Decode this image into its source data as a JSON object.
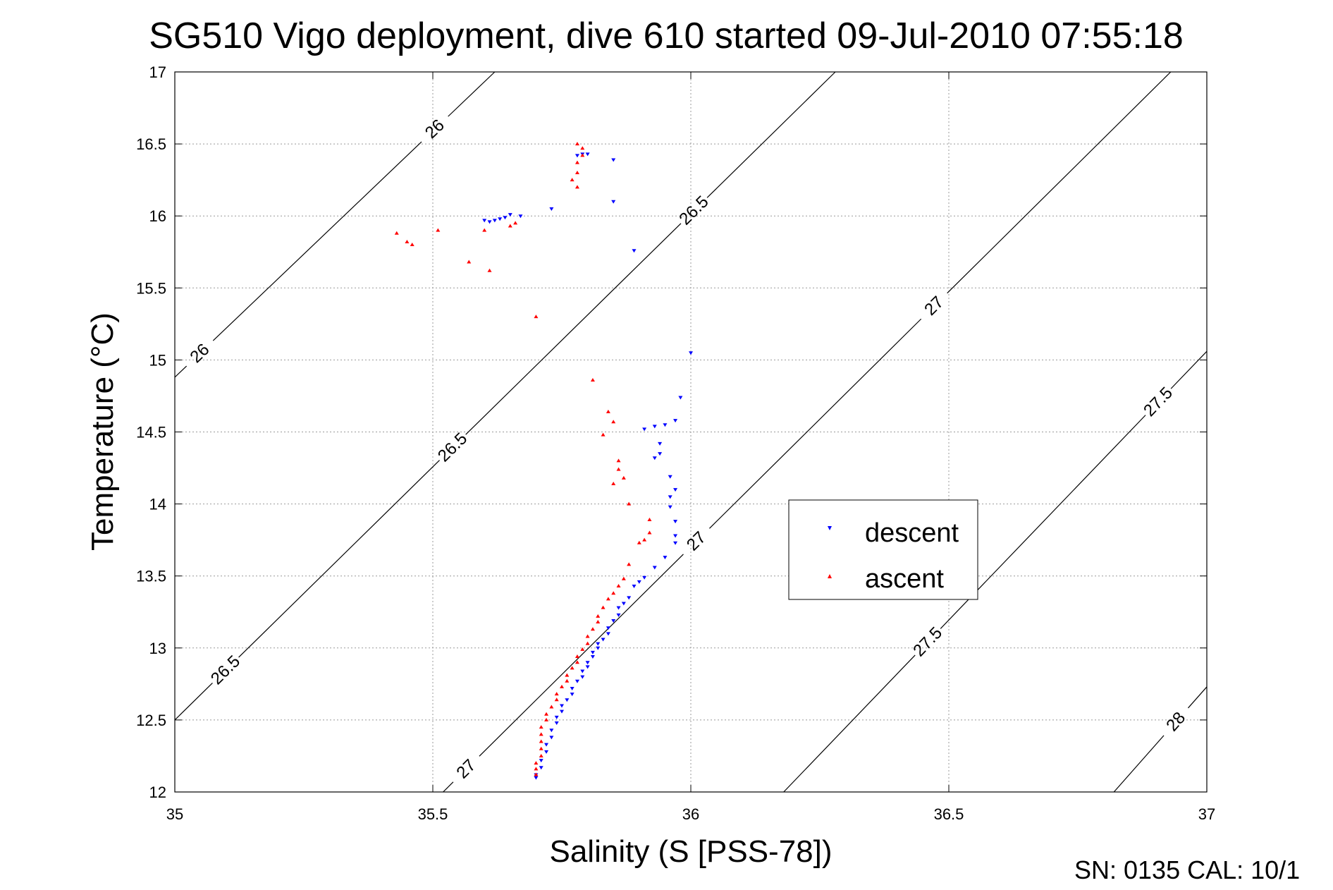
{
  "chart_data": {
    "type": "scatter",
    "title": "SG510 Vigo deployment, dive 610 started 09-Jul-2010 07:55:18",
    "xlabel": "Salinity (S [PSS-78])",
    "ylabel": "Temperature (°C)",
    "xlim": [
      35,
      37
    ],
    "ylim": [
      12,
      17
    ],
    "x_ticks": [
      35,
      35.5,
      36,
      36.5,
      37
    ],
    "x_tick_labels": [
      "35",
      "35.5",
      "36",
      "36.5",
      "37"
    ],
    "y_ticks": [
      12,
      12.5,
      13,
      13.5,
      14,
      14.5,
      15,
      15.5,
      16,
      16.5,
      17
    ],
    "y_tick_labels": [
      "12",
      "12.5",
      "13",
      "13.5",
      "14",
      "14.5",
      "15",
      "15.5",
      "16",
      "16.5",
      "17"
    ],
    "grid": true,
    "legend_position": "center-right",
    "footer": "SN: 0135  CAL: 10/1",
    "colors": {
      "descent": "#0000ff",
      "ascent": "#ff0000",
      "contour": "#000000",
      "grid": "#999999"
    },
    "contours": [
      {
        "value": 26,
        "points": [
          [
            35.0,
            14.88
          ],
          [
            35.62,
            17.0
          ]
        ],
        "labels": [
          {
            "text": "26",
            "x": 35.05,
            "y": 15.04
          },
          {
            "text": "26",
            "x": 35.51,
            "y": 16.58
          }
        ]
      },
      {
        "value": 26.5,
        "points": [
          [
            35.0,
            12.5
          ],
          [
            36.28,
            17.0
          ]
        ],
        "labels": [
          {
            "text": "26.5",
            "x": 35.1,
            "y": 12.84
          },
          {
            "text": "26.5",
            "x": 35.52,
            "y": 14.46
          },
          {
            "text": "26.5",
            "x": 36.0,
            "y": 16.06
          }
        ]
      },
      {
        "value": 27,
        "points": [
          [
            35.52,
            12.0
          ],
          [
            36.93,
            17.0
          ]
        ],
        "labels": [
          {
            "text": "27",
            "x": 35.57,
            "y": 12.14
          },
          {
            "text": "27",
            "x": 36.0,
            "y": 13.78
          },
          {
            "text": "27",
            "x": 36.47,
            "y": 15.38
          }
        ]
      },
      {
        "value": 27.5,
        "points": [
          [
            36.18,
            12.0
          ],
          [
            37.0,
            15.06
          ]
        ],
        "labels": [
          {
            "text": "27.5",
            "x": 36.46,
            "y": 13.04
          },
          {
            "text": "27.5",
            "x": 36.92,
            "y": 14.66
          }
        ]
      },
      {
        "value": 28,
        "points": [
          [
            36.82,
            12.0
          ],
          [
            37.0,
            12.73
          ]
        ],
        "labels": [
          {
            "text": "28",
            "x": 36.93,
            "y": 12.52
          }
        ]
      }
    ],
    "series": [
      {
        "name": "descent",
        "marker": "triangle-down",
        "points": [
          [
            35.79,
            16.43
          ],
          [
            35.78,
            16.42
          ],
          [
            35.8,
            16.43
          ],
          [
            35.85,
            16.39
          ],
          [
            35.85,
            16.1
          ],
          [
            35.73,
            16.05
          ],
          [
            35.67,
            16.0
          ],
          [
            35.65,
            16.01
          ],
          [
            35.64,
            15.99
          ],
          [
            35.63,
            15.98
          ],
          [
            35.62,
            15.97
          ],
          [
            35.61,
            15.96
          ],
          [
            35.6,
            15.97
          ],
          [
            35.89,
            15.76
          ],
          [
            36.0,
            15.05
          ],
          [
            35.98,
            14.74
          ],
          [
            35.97,
            14.58
          ],
          [
            35.95,
            14.55
          ],
          [
            35.93,
            14.54
          ],
          [
            35.91,
            14.52
          ],
          [
            35.94,
            14.42
          ],
          [
            35.94,
            14.35
          ],
          [
            35.93,
            14.32
          ],
          [
            35.96,
            14.19
          ],
          [
            35.97,
            14.1
          ],
          [
            35.96,
            14.05
          ],
          [
            35.96,
            13.98
          ],
          [
            35.97,
            13.88
          ],
          [
            35.97,
            13.78
          ],
          [
            35.97,
            13.73
          ],
          [
            35.95,
            13.63
          ],
          [
            35.93,
            13.56
          ],
          [
            35.91,
            13.49
          ],
          [
            35.9,
            13.46
          ],
          [
            35.89,
            13.43
          ],
          [
            35.88,
            13.35
          ],
          [
            35.87,
            13.31
          ],
          [
            35.86,
            13.28
          ],
          [
            35.86,
            13.23
          ],
          [
            35.85,
            13.19
          ],
          [
            35.84,
            13.14
          ],
          [
            35.84,
            13.1
          ],
          [
            35.83,
            13.06
          ],
          [
            35.82,
            13.03
          ],
          [
            35.82,
            13.0
          ],
          [
            35.81,
            12.97
          ],
          [
            35.81,
            12.94
          ],
          [
            35.8,
            12.9
          ],
          [
            35.8,
            12.87
          ],
          [
            35.79,
            12.84
          ],
          [
            35.79,
            12.8
          ],
          [
            35.78,
            12.77
          ],
          [
            35.77,
            12.72
          ],
          [
            35.77,
            12.68
          ],
          [
            35.76,
            12.64
          ],
          [
            35.75,
            12.6
          ],
          [
            35.75,
            12.56
          ],
          [
            35.74,
            12.52
          ],
          [
            35.74,
            12.48
          ],
          [
            35.73,
            12.43
          ],
          [
            35.73,
            12.38
          ],
          [
            35.72,
            12.33
          ],
          [
            35.72,
            12.28
          ],
          [
            35.71,
            12.22
          ],
          [
            35.71,
            12.17
          ],
          [
            35.7,
            12.12
          ],
          [
            35.7,
            12.1
          ]
        ]
      },
      {
        "name": "ascent",
        "marker": "triangle-up",
        "points": [
          [
            35.78,
            16.5
          ],
          [
            35.79,
            16.47
          ],
          [
            35.79,
            16.42
          ],
          [
            35.78,
            16.37
          ],
          [
            35.78,
            16.3
          ],
          [
            35.77,
            16.25
          ],
          [
            35.78,
            16.2
          ],
          [
            35.66,
            15.95
          ],
          [
            35.65,
            15.93
          ],
          [
            35.6,
            15.9
          ],
          [
            35.51,
            15.9
          ],
          [
            35.43,
            15.88
          ],
          [
            35.45,
            15.82
          ],
          [
            35.46,
            15.8
          ],
          [
            35.57,
            15.68
          ],
          [
            35.61,
            15.62
          ],
          [
            35.7,
            15.3
          ],
          [
            35.81,
            14.86
          ],
          [
            35.84,
            14.64
          ],
          [
            35.85,
            14.57
          ],
          [
            35.83,
            14.48
          ],
          [
            35.86,
            14.3
          ],
          [
            35.86,
            14.24
          ],
          [
            35.87,
            14.18
          ],
          [
            35.85,
            14.14
          ],
          [
            35.88,
            14.0
          ],
          [
            35.92,
            13.89
          ],
          [
            35.92,
            13.8
          ],
          [
            35.91,
            13.75
          ],
          [
            35.9,
            13.73
          ],
          [
            35.88,
            13.58
          ],
          [
            35.87,
            13.48
          ],
          [
            35.86,
            13.43
          ],
          [
            35.85,
            13.38
          ],
          [
            35.84,
            13.34
          ],
          [
            35.83,
            13.28
          ],
          [
            35.82,
            13.22
          ],
          [
            35.82,
            13.18
          ],
          [
            35.81,
            13.13
          ],
          [
            35.8,
            13.08
          ],
          [
            35.8,
            13.03
          ],
          [
            35.79,
            12.99
          ],
          [
            35.78,
            12.94
          ],
          [
            35.78,
            12.9
          ],
          [
            35.77,
            12.86
          ],
          [
            35.76,
            12.81
          ],
          [
            35.76,
            12.77
          ],
          [
            35.75,
            12.73
          ],
          [
            35.74,
            12.68
          ],
          [
            35.74,
            12.64
          ],
          [
            35.73,
            12.59
          ],
          [
            35.72,
            12.54
          ],
          [
            35.72,
            12.5
          ],
          [
            35.71,
            12.45
          ],
          [
            35.71,
            12.4
          ],
          [
            35.71,
            12.35
          ],
          [
            35.71,
            12.3
          ],
          [
            35.71,
            12.25
          ],
          [
            35.7,
            12.2
          ],
          [
            35.7,
            12.16
          ],
          [
            35.7,
            12.12
          ]
        ]
      }
    ]
  }
}
